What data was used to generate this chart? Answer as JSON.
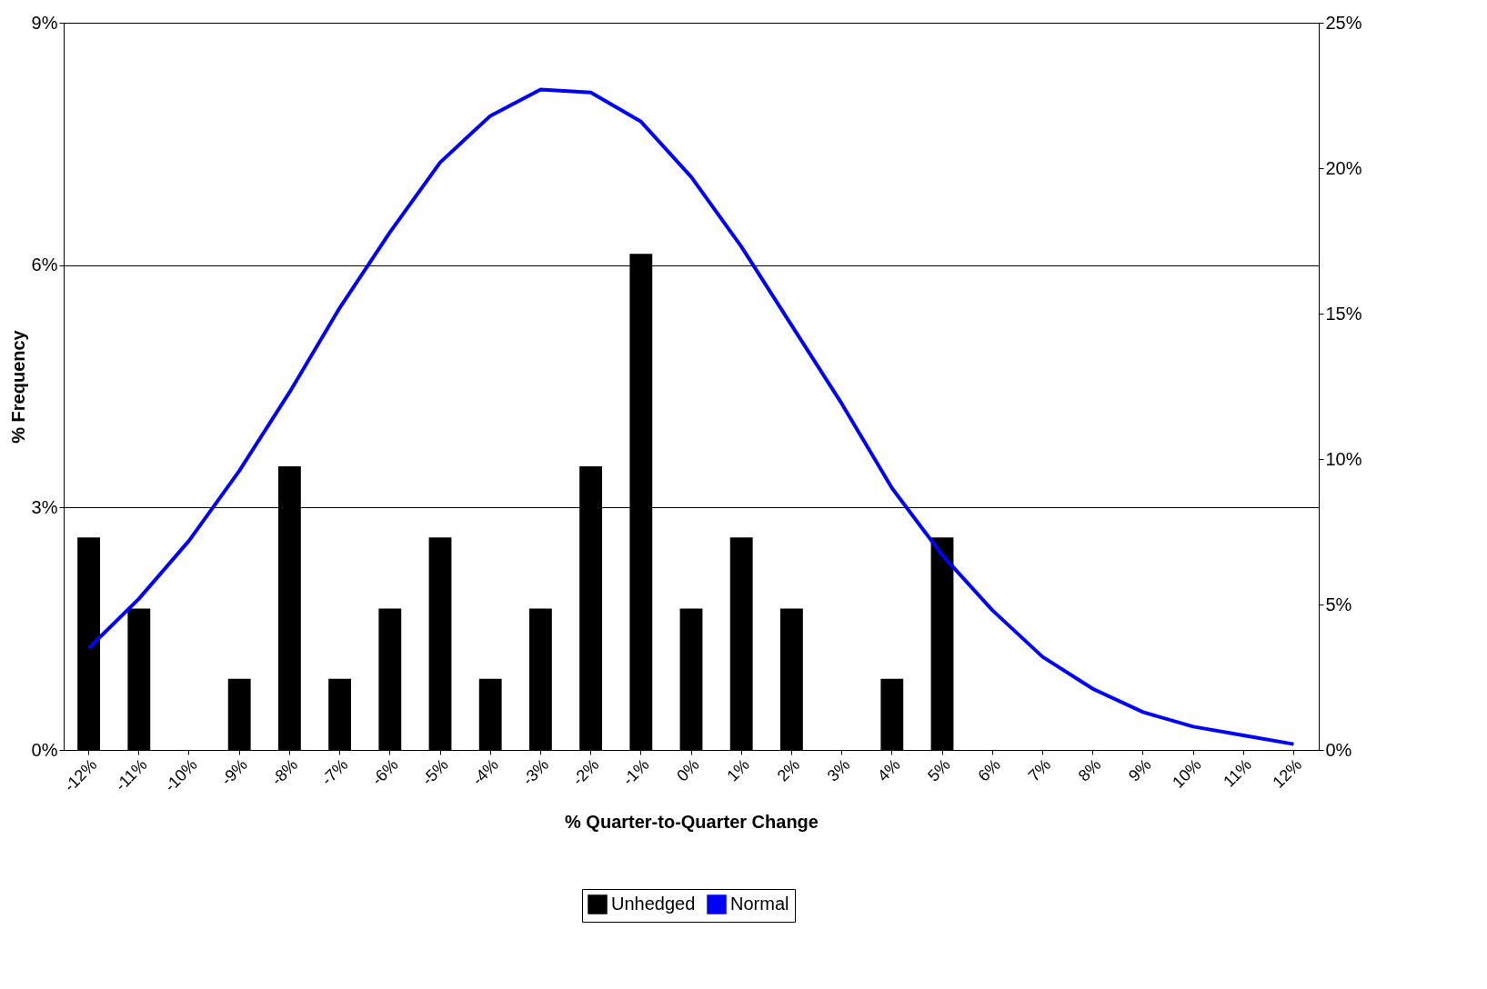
{
  "chart_data": {
    "type": "bar",
    "xlabel": "% Quarter-to-Quarter Change",
    "ylabel": "% Frequency",
    "categories": [
      "-12%",
      "-11%",
      "-10%",
      "-9%",
      "-8%",
      "-7%",
      "-6%",
      "-5%",
      "-4%",
      "-3%",
      "-2%",
      "-1%",
      "0%",
      "1%",
      "2%",
      "3%",
      "4%",
      "5%",
      "6%",
      "7%",
      "8%",
      "9%",
      "10%",
      "11%",
      "12%"
    ],
    "series": [
      {
        "name": "Unhedged",
        "color": "#000000",
        "values": [
          2.63,
          1.75,
          0,
          0.88,
          3.51,
          0.88,
          1.75,
          2.63,
          0.88,
          1.75,
          3.51,
          6.14,
          1.75,
          2.63,
          1.75,
          0,
          0.88,
          2.63,
          0,
          0,
          0,
          0,
          0,
          0,
          0
        ]
      },
      {
        "name": "Normal",
        "type": "line",
        "axis": "y2",
        "color": "#0000ff",
        "values": [
          3.5,
          5.2,
          7.2,
          9.6,
          12.3,
          15.2,
          17.8,
          20.2,
          21.8,
          22.7,
          22.6,
          21.6,
          19.7,
          17.3,
          14.6,
          11.9,
          9.0,
          6.7,
          4.8,
          3.2,
          2.1,
          1.3,
          0.8,
          0.5,
          0.2
        ]
      }
    ],
    "ylim": [
      0,
      9
    ],
    "yticks": [
      {
        "value": 0,
        "label": "0%"
      },
      {
        "value": 3,
        "label": "3%"
      },
      {
        "value": 6,
        "label": "6%"
      },
      {
        "value": 9,
        "label": "9%"
      }
    ],
    "y2lim": [
      0,
      25
    ],
    "y2ticks": [
      {
        "value": 0,
        "label": "0%"
      },
      {
        "value": 5,
        "label": "5%"
      },
      {
        "value": 10,
        "label": "10%"
      },
      {
        "value": 15,
        "label": "15%"
      },
      {
        "value": 20,
        "label": "20%"
      },
      {
        "value": 25,
        "label": "25%"
      }
    ],
    "grid": "y",
    "legend": "bottom",
    "line_style": "solid",
    "marker": "none"
  }
}
